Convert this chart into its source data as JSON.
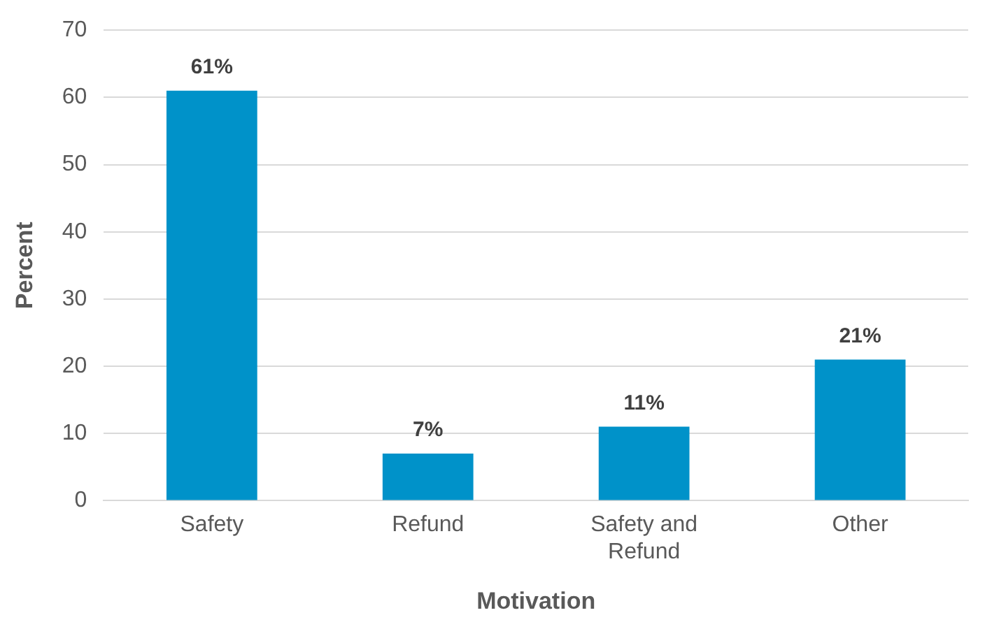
{
  "chart_data": {
    "type": "bar",
    "xlabel": "Motivation",
    "ylabel": "Percent",
    "categories": [
      "Safety",
      "Refund",
      "Safety and Refund",
      "Other"
    ],
    "values": [
      61,
      7,
      11,
      21
    ],
    "color": "#0092c9",
    "value_labels": [
      "61%",
      "7%",
      "11%",
      "21%"
    ],
    "ylim": [
      0,
      70
    ],
    "yticks": [
      0,
      10,
      20,
      30,
      40,
      50,
      60,
      70
    ],
    "grid": "y",
    "legend": false
  }
}
